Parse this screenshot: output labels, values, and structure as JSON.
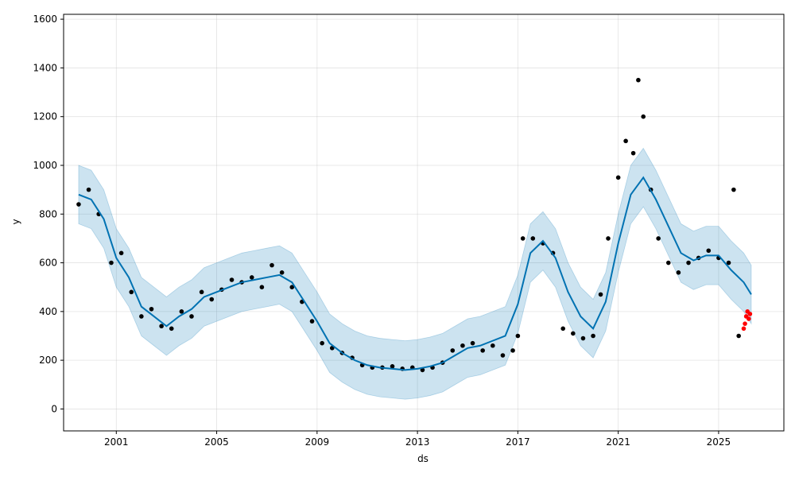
{
  "chart_data": {
    "type": "line",
    "title": "",
    "xlabel": "ds",
    "ylabel": "y",
    "xlim": [
      1998.9,
      2027.6
    ],
    "ylim": [
      -90,
      1620
    ],
    "xticks": [
      2001,
      2005,
      2009,
      2013,
      2017,
      2021,
      2025
    ],
    "xtick_labels": [
      "2001",
      "2005",
      "2009",
      "2013",
      "2017",
      "2021",
      "2025"
    ],
    "yticks": [
      0,
      200,
      400,
      600,
      800,
      1000,
      1200,
      1400,
      1600
    ],
    "ytick_labels": [
      "0",
      "200",
      "400",
      "600",
      "800",
      "1000",
      "1200",
      "1400",
      "1600"
    ],
    "grid": true,
    "colors": {
      "forecast": "#0072B2",
      "interval": "#0072B2",
      "observed": "#000000",
      "test": "#ff0000"
    },
    "series": [
      {
        "kind": "forecast",
        "x": [
          1999.5,
          2000.0,
          2000.5,
          2001.0,
          2001.5,
          2002.0,
          2002.5,
          2003.0,
          2003.5,
          2004.0,
          2004.5,
          2005.0,
          2005.5,
          2006.0,
          2006.5,
          2007.0,
          2007.5,
          2008.0,
          2008.5,
          2009.0,
          2009.5,
          2010.0,
          2010.5,
          2011.0,
          2011.5,
          2012.0,
          2012.5,
          2013.0,
          2013.5,
          2014.0,
          2014.5,
          2015.0,
          2015.5,
          2016.0,
          2016.5,
          2017.0,
          2017.5,
          2018.0,
          2018.5,
          2019.0,
          2019.5,
          2020.0,
          2020.5,
          2021.0,
          2021.5,
          2022.0,
          2022.5,
          2023.0,
          2023.5,
          2024.0,
          2024.5,
          2025.0,
          2025.5,
          2026.0,
          2026.3
        ],
        "y": [
          880,
          860,
          780,
          620,
          540,
          420,
          380,
          340,
          380,
          410,
          460,
          480,
          500,
          520,
          530,
          540,
          550,
          520,
          440,
          360,
          270,
          230,
          200,
          180,
          170,
          165,
          160,
          165,
          175,
          190,
          220,
          250,
          260,
          280,
          300,
          430,
          640,
          690,
          620,
          480,
          380,
          330,
          440,
          680,
          880,
          950,
          860,
          750,
          640,
          610,
          630,
          630,
          570,
          520,
          470
        ]
      },
      {
        "kind": "interval",
        "x": [
          1999.5,
          2000.0,
          2000.5,
          2001.0,
          2001.5,
          2002.0,
          2002.5,
          2003.0,
          2003.5,
          2004.0,
          2004.5,
          2005.0,
          2005.5,
          2006.0,
          2006.5,
          2007.0,
          2007.5,
          2008.0,
          2008.5,
          2009.0,
          2009.5,
          2010.0,
          2010.5,
          2011.0,
          2011.5,
          2012.0,
          2012.5,
          2013.0,
          2013.5,
          2014.0,
          2014.5,
          2015.0,
          2015.5,
          2016.0,
          2016.5,
          2017.0,
          2017.5,
          2018.0,
          2018.5,
          2019.0,
          2019.5,
          2020.0,
          2020.5,
          2021.0,
          2021.5,
          2022.0,
          2022.5,
          2023.0,
          2023.5,
          2024.0,
          2024.5,
          2025.0,
          2025.5,
          2026.0,
          2026.3
        ],
        "lower": [
          760,
          740,
          660,
          500,
          420,
          300,
          260,
          220,
          260,
          290,
          340,
          360,
          380,
          400,
          410,
          420,
          430,
          400,
          320,
          240,
          150,
          110,
          80,
          60,
          50,
          45,
          40,
          45,
          55,
          70,
          100,
          130,
          140,
          160,
          180,
          310,
          520,
          570,
          500,
          360,
          260,
          210,
          320,
          560,
          760,
          830,
          740,
          630,
          520,
          490,
          510,
          510,
          450,
          400,
          350
        ],
        "upper": [
          1000,
          980,
          900,
          740,
          660,
          540,
          500,
          460,
          500,
          530,
          580,
          600,
          620,
          640,
          650,
          660,
          670,
          640,
          560,
          480,
          390,
          350,
          320,
          300,
          290,
          285,
          280,
          285,
          295,
          310,
          340,
          370,
          380,
          400,
          420,
          550,
          760,
          810,
          740,
          600,
          500,
          450,
          560,
          800,
          1000,
          1070,
          980,
          870,
          760,
          730,
          750,
          750,
          690,
          640,
          590
        ]
      },
      {
        "kind": "observed",
        "x": [
          1999.5,
          1999.9,
          2000.3,
          2000.8,
          2001.2,
          2001.6,
          2002.0,
          2002.4,
          2002.8,
          2003.2,
          2003.6,
          2004.0,
          2004.4,
          2004.8,
          2005.2,
          2005.6,
          2006.0,
          2006.4,
          2006.8,
          2007.2,
          2007.6,
          2008.0,
          2008.4,
          2008.8,
          2009.2,
          2009.6,
          2010.0,
          2010.4,
          2010.8,
          2011.2,
          2011.6,
          2012.0,
          2012.4,
          2012.8,
          2013.2,
          2013.6,
          2014.0,
          2014.4,
          2014.8,
          2015.2,
          2015.6,
          2016.0,
          2016.4,
          2016.8,
          2017.0,
          2017.2,
          2017.6,
          2018.0,
          2018.4,
          2018.8,
          2019.2,
          2019.6,
          2020.0,
          2020.3,
          2020.6,
          2021.0,
          2021.3,
          2021.6,
          2021.8,
          2022.0,
          2022.3,
          2022.6,
          2023.0,
          2023.4,
          2023.8,
          2024.2,
          2024.6,
          2025.0,
          2025.4,
          2025.6,
          2025.8
        ],
        "y": [
          840,
          900,
          800,
          600,
          640,
          480,
          380,
          410,
          340,
          330,
          400,
          380,
          480,
          450,
          490,
          530,
          520,
          540,
          500,
          590,
          560,
          500,
          440,
          360,
          270,
          250,
          230,
          210,
          180,
          170,
          170,
          175,
          165,
          170,
          160,
          170,
          190,
          240,
          260,
          270,
          240,
          260,
          220,
          240,
          300,
          700,
          700,
          680,
          640,
          330,
          310,
          290,
          300,
          470,
          700,
          950,
          1100,
          1050,
          1350,
          1200,
          900,
          700,
          600,
          560,
          600,
          620,
          650,
          620,
          600,
          900,
          300
        ]
      },
      {
        "kind": "test",
        "x": [
          2026.0,
          2026.05,
          2026.1,
          2026.15,
          2026.2,
          2026.25
        ],
        "y": [
          330,
          350,
          380,
          400,
          370,
          390
        ]
      }
    ]
  }
}
